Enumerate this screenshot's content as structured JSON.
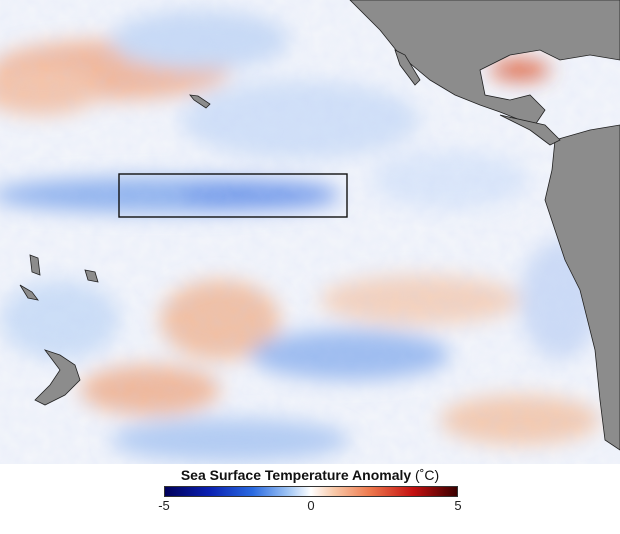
{
  "map": {
    "kind": "sea surface temperature anomaly",
    "highlight_box": true,
    "land_color": "#8c8c8c"
  },
  "legend": {
    "title": "Sea Surface Temperature Anomaly",
    "unit": "(˚C)",
    "ticks": [
      "-5",
      "0",
      "5"
    ],
    "range": [
      -5,
      5
    ],
    "colors": {
      "cold": "#00005a",
      "neutral": "#ffffff",
      "warm": "#3a0000"
    }
  }
}
